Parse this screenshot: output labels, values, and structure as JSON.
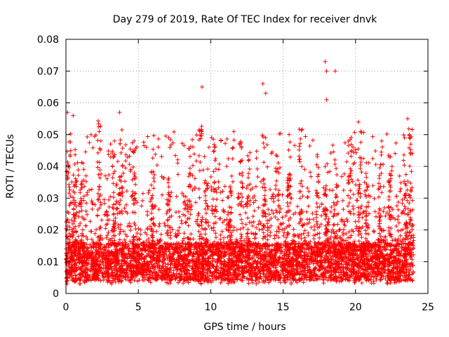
{
  "chart_data": {
    "type": "scatter",
    "title": "Day 279 of 2019, Rate Of TEC Index for receiver dnvk",
    "xlabel": "GPS time / hours",
    "ylabel": "ROTI / TECUs",
    "xlim": [
      0,
      25
    ],
    "ylim": [
      0,
      0.08
    ],
    "x_ticks": [
      "0",
      "5",
      "10",
      "15",
      "20",
      "25"
    ],
    "y_ticks": [
      "0",
      "0.01",
      "0.02",
      "0.03",
      "0.04",
      "0.05",
      "0.06",
      "0.07",
      "0.08"
    ],
    "grid": true,
    "marker": "+",
    "series_color": "#ff0000",
    "data_range_x": [
      0,
      24
    ],
    "baseline_y": 0.01,
    "typical_spread_y": [
      0.003,
      0.035
    ],
    "notable_points": [
      {
        "x": 0.1,
        "y": 0.057
      },
      {
        "x": 0.5,
        "y": 0.056
      },
      {
        "x": 3.7,
        "y": 0.057
      },
      {
        "x": 9.4,
        "y": 0.065
      },
      {
        "x": 13.6,
        "y": 0.066
      },
      {
        "x": 13.8,
        "y": 0.063
      },
      {
        "x": 17.9,
        "y": 0.073
      },
      {
        "x": 18.0,
        "y": 0.07
      },
      {
        "x": 18.6,
        "y": 0.07
      },
      {
        "x": 18.0,
        "y": 0.061
      },
      {
        "x": 20.2,
        "y": 0.054
      },
      {
        "x": 23.6,
        "y": 0.055
      },
      {
        "x": 7.1,
        "y": 0.049
      },
      {
        "x": 11.1,
        "y": 0.04
      },
      {
        "x": 21.8,
        "y": 0.048
      }
    ]
  }
}
